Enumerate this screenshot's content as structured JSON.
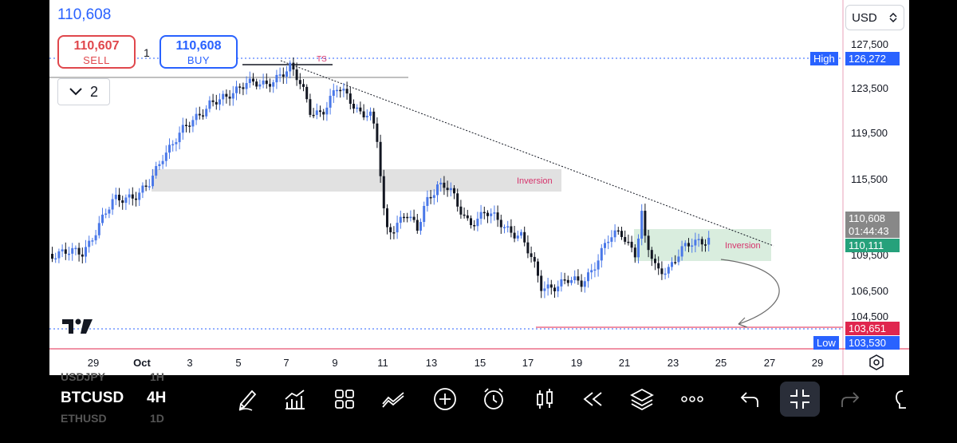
{
  "header": {
    "last_price": "110,608",
    "sell_price": "110,607",
    "sell_label": "SELL",
    "buy_price": "110,608",
    "buy_label": "BUY",
    "quantity": "1",
    "layers_count": "2"
  },
  "price_axis": {
    "currency": "USD",
    "ticks": [
      "127,500",
      "123,500",
      "119,500",
      "115,500",
      "106,500",
      "104,500"
    ],
    "high_label": "High",
    "high_value": "126,272",
    "low_label": "Low",
    "low_value": "103,530",
    "current_price": "110,608",
    "countdown": "01:44:43",
    "green_tag": "110,111",
    "red_tag": "103,651",
    "partial_tick": "109,500"
  },
  "time_axis": {
    "ticks": [
      "29",
      "Oct",
      "3",
      "5",
      "7",
      "9",
      "11",
      "13",
      "15",
      "17",
      "19",
      "21",
      "23",
      "25",
      "27",
      "29"
    ]
  },
  "annotations": {
    "ts": "TS",
    "inversion_top": "Inversion",
    "inversion_bottom": "Inversion"
  },
  "toolbar": {
    "symbol": "BTCUSD",
    "timeframe": "4H",
    "ghost_top": "USDJPY",
    "ghost_top_tf": "1H",
    "ghost_bottom": "ETHUSD",
    "ghost_bottom_tf": "1D",
    "icons": [
      "pen-icon",
      "indicators-icon",
      "templates-icon",
      "trendline-tool-icon",
      "add-icon",
      "alert-icon",
      "candlestick-icon",
      "replay-icon",
      "layers-icon",
      "more-icon",
      "undo-icon",
      "collapse-icon",
      "redo-icon",
      "bulb-icon"
    ]
  },
  "colors": {
    "up": "#4a78e8",
    "down": "#131722",
    "accent_blue": "#2962ff",
    "sell_red": "#e0474c",
    "green_tag": "#26a17b",
    "red_tag": "#e0264e",
    "inversion_text": "#d6336c"
  }
}
